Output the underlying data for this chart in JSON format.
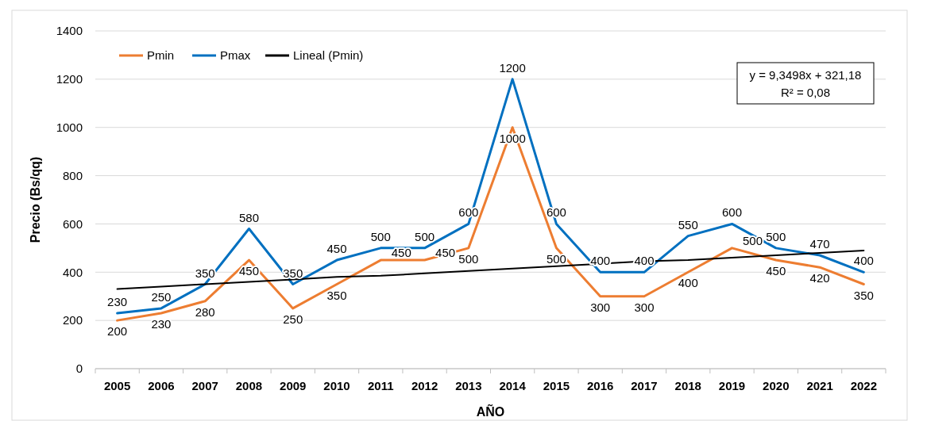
{
  "chart_data": {
    "type": "line",
    "xlabel": "AÑO",
    "ylabel": "Precio (Bs/qq)",
    "categories": [
      "2005",
      "2006",
      "2007",
      "2008",
      "2009",
      "2010",
      "2011",
      "2012",
      "2013",
      "2014",
      "2015",
      "2016",
      "2017",
      "2018",
      "2019",
      "2020",
      "2021",
      "2022"
    ],
    "series": [
      {
        "name": "Pmin",
        "color": "#ed7d31",
        "values": [
          200,
          230,
          280,
          450,
          250,
          350,
          450,
          450,
          500,
          1000,
          500,
          300,
          300,
          400,
          500,
          450,
          420,
          350
        ],
        "value_labels": [
          "200",
          "230",
          "280",
          "450",
          "250",
          "350",
          "450",
          "450",
          "500",
          "1000",
          "500",
          "300",
          "300",
          "400",
          "500",
          "450",
          "420",
          "350"
        ]
      },
      {
        "name": "Pmax",
        "color": "#0070c0",
        "values": [
          230,
          250,
          350,
          580,
          350,
          450,
          500,
          500,
          600,
          1200,
          600,
          400,
          400,
          550,
          600,
          500,
          470,
          400
        ],
        "value_labels": [
          "230",
          "250",
          "350",
          "580",
          "350",
          "450",
          "500",
          "500",
          "600",
          "1200",
          "600",
          "400",
          "400",
          "550",
          "600",
          "500",
          "470",
          "400"
        ]
      },
      {
        "name": "Lineal (Pmin)",
        "color": "#000000",
        "values": [
          330,
          340,
          350,
          360,
          370,
          380,
          385,
          395,
          405,
          415,
          425,
          435,
          445,
          450,
          460,
          470,
          480,
          490
        ]
      }
    ],
    "ylim": [
      0,
      1400
    ],
    "yticks": [
      0,
      200,
      400,
      600,
      800,
      1000,
      1200,
      1400
    ],
    "grid": "y",
    "legend": "top left",
    "annotations": [
      "y = 9,3498x + 321,18",
      "R² = 0,08"
    ]
  }
}
